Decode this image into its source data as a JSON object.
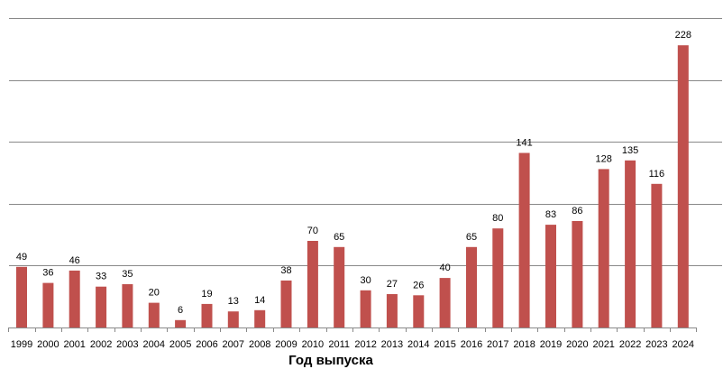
{
  "chart_data": {
    "type": "bar",
    "title": "",
    "xlabel": "Год выпуска",
    "ylabel": "",
    "categories": [
      "1999",
      "2000",
      "2001",
      "2002",
      "2003",
      "2004",
      "2005",
      "2006",
      "2007",
      "2008",
      "2009",
      "2010",
      "2011",
      "2012",
      "2013",
      "2014",
      "2015",
      "2016",
      "2017",
      "2018",
      "2019",
      "2020",
      "2021",
      "2022",
      "2023",
      "2024"
    ],
    "values": [
      49,
      36,
      46,
      33,
      35,
      20,
      6,
      19,
      13,
      14,
      38,
      70,
      65,
      30,
      27,
      26,
      40,
      65,
      80,
      141,
      83,
      86,
      128,
      135,
      116,
      228
    ],
    "ylim": [
      0,
      250
    ],
    "gridlines": [
      50,
      100,
      150,
      200,
      250
    ],
    "grid": true,
    "legend": "none",
    "colors": {
      "bar": "#c0504d",
      "grid": "#898989",
      "axis": "#898989",
      "text": "#000000"
    }
  }
}
